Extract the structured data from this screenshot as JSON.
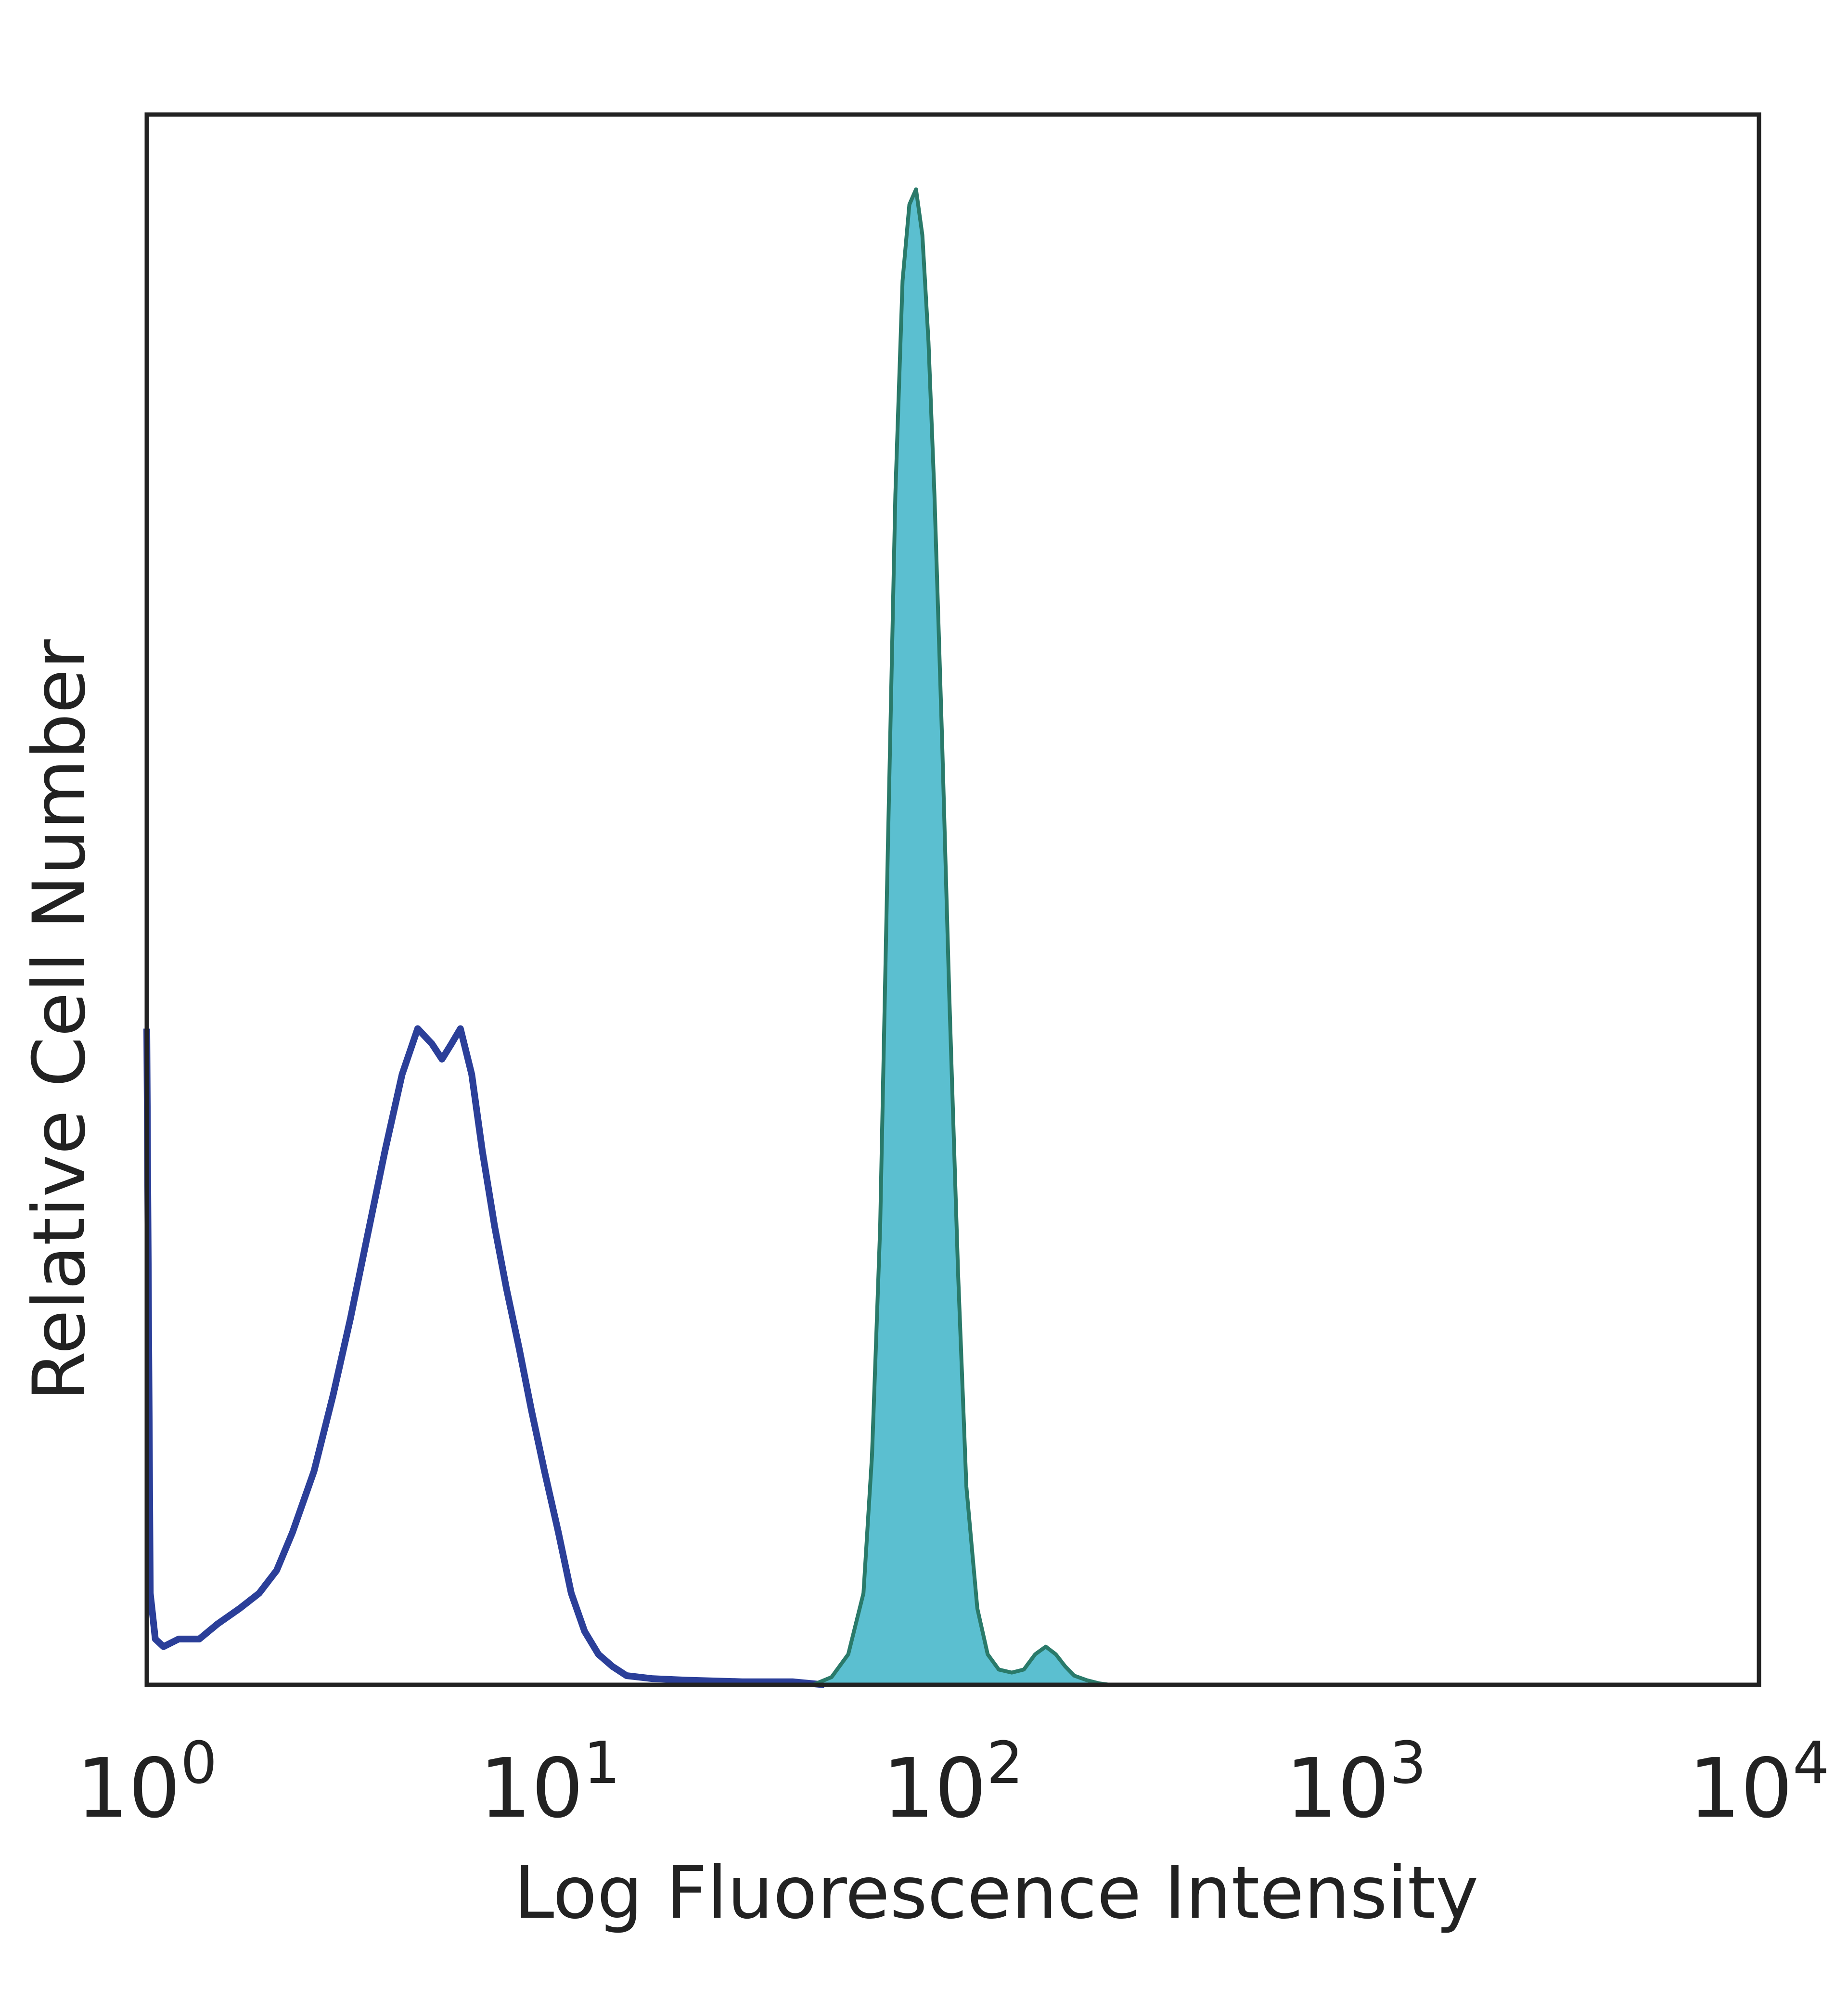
{
  "chart_data": {
    "type": "area",
    "title": "",
    "xlabel": "Log Fluorescence Intensity",
    "ylabel": "Relative Cell Number",
    "x_scale": "log",
    "xlim": [
      1,
      10000
    ],
    "ylim": [
      0,
      1
    ],
    "grid": false,
    "legend": "none",
    "x_ticks": [
      {
        "value": 1,
        "base": "10",
        "exp": "0"
      },
      {
        "value": 10,
        "base": "10",
        "exp": "1"
      },
      {
        "value": 100,
        "base": "10",
        "exp": "2"
      },
      {
        "value": 1000,
        "base": "10",
        "exp": "3"
      },
      {
        "value": 10000,
        "base": "10",
        "exp": "4"
      }
    ],
    "series": [
      {
        "style": "outline",
        "color": "#2b3f99",
        "x": [
          1.0,
          1.02,
          1.05,
          1.1,
          1.2,
          1.35,
          1.5,
          1.7,
          1.9,
          2.1,
          2.3,
          2.6,
          2.9,
          3.2,
          3.5,
          3.9,
          4.3,
          4.7,
          5.1,
          5.4,
          5.7,
          6.0,
          6.4,
          6.8,
          7.3,
          7.8,
          8.4,
          9.0,
          9.7,
          10.5,
          11.3,
          12.2,
          13.2,
          14.3,
          15.5,
          18,
          22,
          30,
          40,
          48
        ],
        "y": [
          0.43,
          0.06,
          0.03,
          0.025,
          0.03,
          0.03,
          0.04,
          0.05,
          0.06,
          0.075,
          0.1,
          0.14,
          0.19,
          0.24,
          0.29,
          0.35,
          0.4,
          0.43,
          0.42,
          0.41,
          0.42,
          0.43,
          0.4,
          0.35,
          0.3,
          0.26,
          0.22,
          0.18,
          0.14,
          0.1,
          0.06,
          0.035,
          0.02,
          0.012,
          0.006,
          0.004,
          0.003,
          0.002,
          0.002,
          0.0
        ]
      },
      {
        "style": "filled",
        "color": "#5bbfd0",
        "edge_color": "#2a7a6a",
        "x": [
          45,
          50,
          55,
          60,
          63,
          66,
          69,
          72,
          75,
          78,
          81,
          84,
          87,
          90,
          94,
          98,
          103,
          108,
          115,
          122,
          130,
          140,
          150,
          160,
          170,
          180,
          190,
          200,
          215,
          230,
          245
        ],
        "y": [
          0.0,
          0.005,
          0.02,
          0.06,
          0.15,
          0.3,
          0.55,
          0.78,
          0.92,
          0.97,
          0.98,
          0.95,
          0.88,
          0.78,
          0.62,
          0.45,
          0.27,
          0.13,
          0.05,
          0.02,
          0.01,
          0.008,
          0.01,
          0.02,
          0.025,
          0.02,
          0.012,
          0.006,
          0.003,
          0.001,
          0.0
        ]
      }
    ]
  }
}
